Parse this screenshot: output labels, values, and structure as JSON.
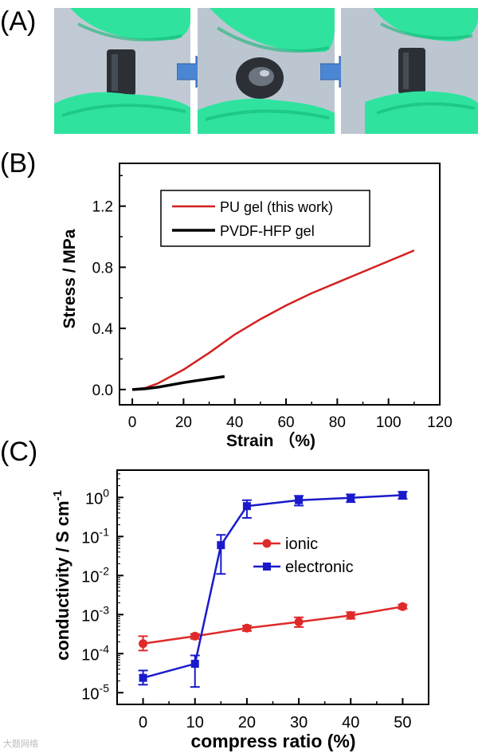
{
  "labels": {
    "a": "(A)",
    "b": "(B)",
    "c": "(C)"
  },
  "photos": [
    {
      "name": "gel-before-compression"
    },
    {
      "name": "gel-compressed"
    },
    {
      "name": "gel-recovered"
    }
  ],
  "colors": {
    "glove": "#2fe39f",
    "gloveDark": "#14b877",
    "gel": "#2c3036",
    "arrow": "#4a86d4",
    "pu": "#d42020",
    "pvdf": "#000000",
    "ionic": "#e02a2a",
    "electronic": "#1a1acc"
  },
  "watermark": "大题网络",
  "chart_data": [
    {
      "type": "line",
      "title": "",
      "xlabel": "Strain （%)",
      "ylabel": "Stress / MPa",
      "xlim": [
        -5,
        120
      ],
      "ylim": [
        -0.1,
        1.48
      ],
      "xticks": [
        0,
        20,
        40,
        60,
        80,
        100,
        120
      ],
      "xtick_labels": [
        "0",
        "20",
        "40",
        "60",
        "80",
        "100",
        "120"
      ],
      "yticks": [
        0.0,
        0.4,
        0.8,
        1.2
      ],
      "ytick_labels": [
        "0.0",
        "0.4",
        "0.8",
        "1.2"
      ],
      "legend": "top-left",
      "series": [
        {
          "name": "PU gel (this work)",
          "color": "#d42020",
          "x": [
            0,
            5,
            10,
            20,
            30,
            40,
            50,
            60,
            70,
            80,
            90,
            100,
            110
          ],
          "y": [
            0.0,
            0.01,
            0.04,
            0.13,
            0.24,
            0.36,
            0.46,
            0.55,
            0.63,
            0.7,
            0.77,
            0.84,
            0.91
          ]
        },
        {
          "name": "PVDF-HFP gel",
          "color": "#000000",
          "x": [
            0,
            5,
            10,
            15,
            20,
            25,
            30,
            36
          ],
          "y": [
            0.0,
            0.005,
            0.015,
            0.03,
            0.045,
            0.058,
            0.07,
            0.085
          ]
        }
      ]
    },
    {
      "type": "line",
      "title": "",
      "xlabel": "compress ratio (%)",
      "ylabel": "conductivity / S cm",
      "ylabel_sup": "-1",
      "yscale": "log",
      "xlim": [
        -5,
        55
      ],
      "ylim_log10": [
        -5.3,
        0.7
      ],
      "xticks": [
        0,
        10,
        20,
        30,
        40,
        50
      ],
      "xtick_labels": [
        "0",
        "10",
        "20",
        "30",
        "40",
        "50"
      ],
      "yticks_log10": [
        -5,
        -4,
        -3,
        -2,
        -1,
        0
      ],
      "ytick_base": "10",
      "ytick_exps": [
        "-5",
        "-4",
        "-3",
        "-2",
        "-1",
        "0"
      ],
      "legend": "center-right",
      "series": [
        {
          "name": "ionic",
          "color": "#e02a2a",
          "marker": "circle",
          "x": [
            0,
            10,
            20,
            30,
            40,
            50
          ],
          "y": [
            0.00018,
            0.00028,
            0.00045,
            0.00065,
            0.00095,
            0.0016
          ],
          "y_low": [
            0.00012,
            0.00024,
            0.00038,
            0.00048,
            0.00078,
            0.0014
          ],
          "y_high": [
            0.00028,
            0.00032,
            0.00052,
            0.00085,
            0.00115,
            0.0018
          ]
        },
        {
          "name": "electronic",
          "color": "#1a1acc",
          "marker": "square",
          "x": [
            0,
            10,
            15,
            20,
            30,
            40,
            50
          ],
          "y": [
            2.4e-05,
            5.5e-05,
            0.06,
            0.6,
            0.85,
            0.98,
            1.15
          ],
          "y_low": [
            1.6e-05,
            1.4e-05,
            0.011,
            0.3,
            0.62,
            0.76,
            0.92
          ],
          "y_high": [
            3.7e-05,
            9e-05,
            0.11,
            0.85,
            1.1,
            1.2,
            1.4
          ]
        }
      ]
    }
  ]
}
